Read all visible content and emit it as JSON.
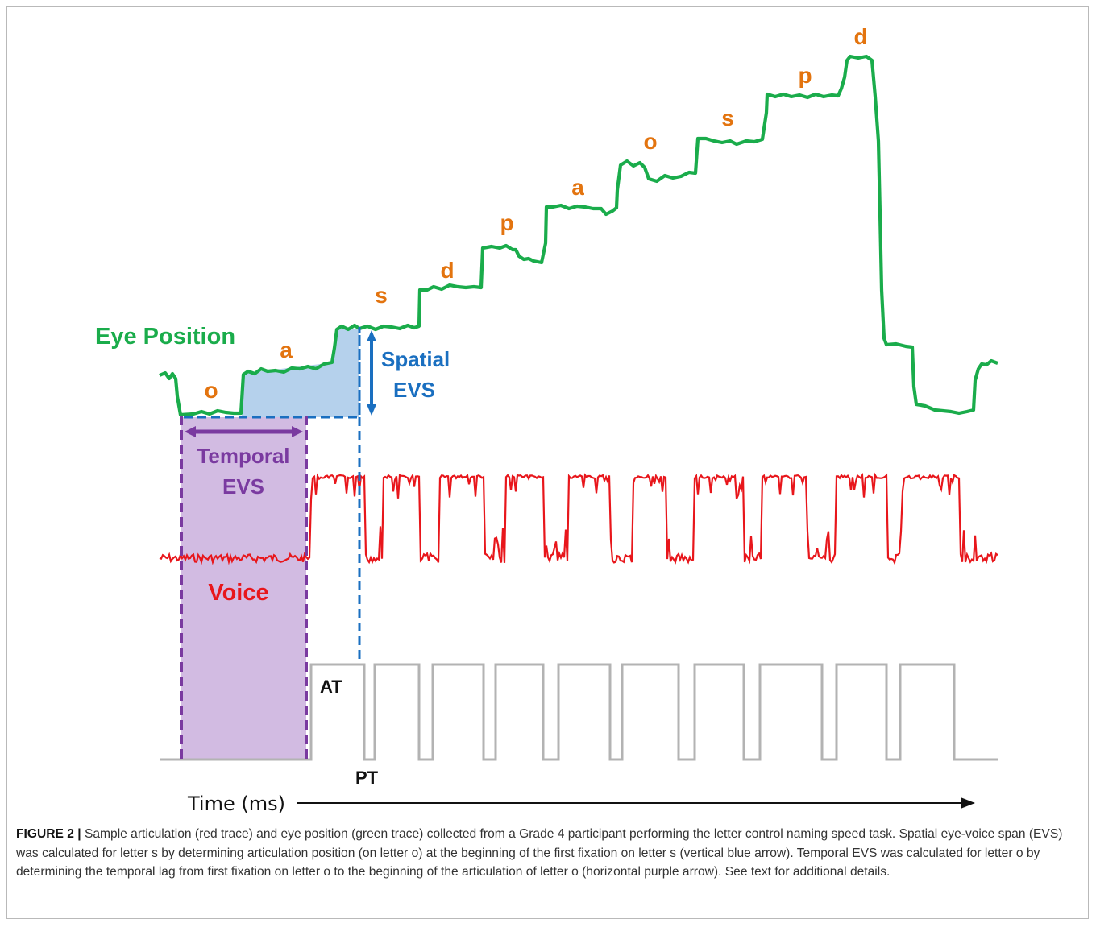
{
  "figure": {
    "labels": {
      "eye_position": "Eye Position",
      "spatial_evs_line1": "Spatial",
      "spatial_evs_line2": "EVS",
      "temporal_evs_line1": "Temporal",
      "temporal_evs_line2": "EVS",
      "voice": "Voice",
      "at": "AT",
      "pt": "PT",
      "time_axis": "Time (ms)"
    },
    "letters": [
      "o",
      "a",
      "s",
      "d",
      "p",
      "a",
      "o",
      "s",
      "p",
      "d"
    ],
    "colors": {
      "eye": "#1aac4b",
      "voice": "#e8161b",
      "letters": "#e3740f",
      "spatial": "#1a6fc0",
      "spatial_fill": "#b5d1ec",
      "temporal": "#7a3aa0",
      "temporal_fill": "#d2bbe2",
      "pulse": "#b3b3b3",
      "axis": "#111111"
    }
  },
  "caption": {
    "label": "FIGURE 2 |",
    "text": " Sample articulation (red trace) and eye position (green trace) collected from a Grade 4 participant performing the letter control naming speed task. Spatial eye-voice span (EVS) was calculated for letter s by determining articulation position (on letter o) at the beginning of the first fixation on letter s (vertical blue arrow). Temporal EVS was calculated for letter o by determining the temporal lag from first fixation on letter o to the beginning of the articulation of letter o (horizontal purple arrow). See text for additional details."
  }
}
